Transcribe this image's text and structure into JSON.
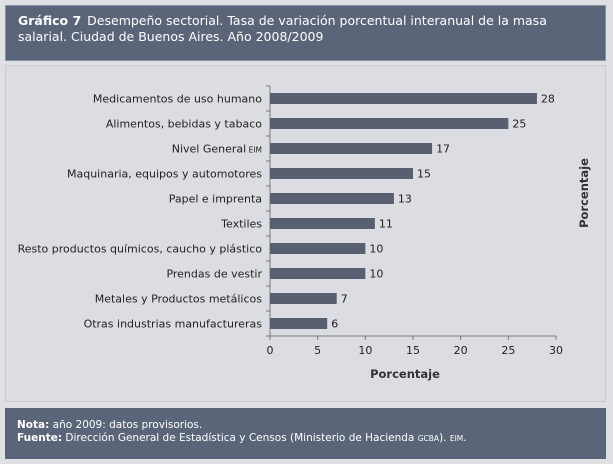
{
  "header": {
    "graph_number": "Gráfico 7",
    "title": "Desempeño sectorial. Tasa de variación porcentual interanual de la masa salarial. Ciudad de Buenos Aires. Año 2008/2009"
  },
  "footer": {
    "nota_label": "Nota:",
    "nota_text": "año 2009: datos provisorios.",
    "fuente_label": "Fuente:",
    "fuente_text": "Dirección General de Estadística y Censos (Ministerio de Hacienda",
    "fuente_small1": "GCBA",
    "fuente_mid": "). ",
    "fuente_small2": "EIM",
    "fuente_end": "."
  },
  "colors": {
    "bar": "#585f70",
    "header_bg": "#5b6579",
    "panel_bg": "#dcdde2"
  },
  "chart_data": {
    "type": "bar",
    "orientation": "horizontal",
    "categories": [
      "Medicamentos de uso humano",
      "Alimentos, bebidas y tabaco",
      "Nivel General",
      "Maquinaria, equipos y automotores",
      "Papel e imprenta",
      "Textiles",
      "Resto productos químicos, caucho y plástico",
      "Prendas de vestir",
      "Metales y Productos metálicos",
      "Otras industrias manufactureras"
    ],
    "category_suffix": [
      "",
      "",
      "EIM",
      "",
      "",
      "",
      "",
      "",
      "",
      ""
    ],
    "values": [
      28,
      25,
      17,
      15,
      13,
      11,
      10,
      10,
      7,
      6
    ],
    "xlabel": "Porcentaje",
    "ylabel": "Porcentaje",
    "xlim": [
      0,
      30
    ],
    "xticks": [
      0,
      5,
      10,
      15,
      20,
      25,
      30
    ],
    "grid": false,
    "legend": "none"
  }
}
